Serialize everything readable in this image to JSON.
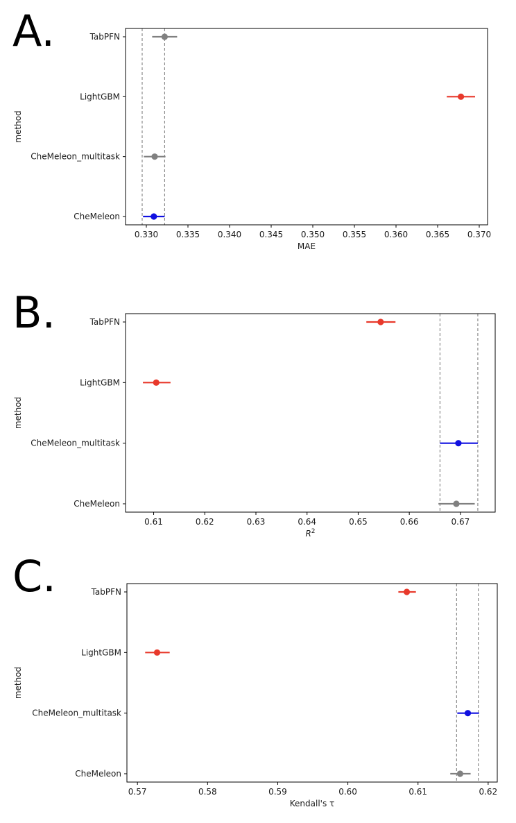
{
  "chart_data": [
    {
      "panel": "A.",
      "type": "scatter",
      "title": "",
      "xlabel": "MAE",
      "ylabel": "method",
      "categories": [
        "TabPFN",
        "LightGBM",
        "CheMeleon_multitask",
        "CheMeleon"
      ],
      "xlim": [
        0.3275,
        0.371
      ],
      "xticks": [
        0.33,
        0.335,
        0.34,
        0.345,
        0.35,
        0.355,
        0.36,
        0.365,
        0.37
      ],
      "xtick_labels": [
        "0.330",
        "0.335",
        "0.340",
        "0.345",
        "0.350",
        "0.355",
        "0.360",
        "0.365",
        "0.370"
      ],
      "reference_lines": [
        0.3295,
        0.3322
      ],
      "points": [
        {
          "method": "TabPFN",
          "value": 0.3322,
          "low": 0.3307,
          "high": 0.3337,
          "color": "#808080"
        },
        {
          "method": "LightGBM",
          "value": 0.3678,
          "low": 0.3661,
          "high": 0.3695,
          "color": "#e8392b"
        },
        {
          "method": "CheMeleon_multitask",
          "value": 0.331,
          "low": 0.3297,
          "high": 0.3323,
          "color": "#808080"
        },
        {
          "method": "CheMeleon",
          "value": 0.3309,
          "low": 0.3296,
          "high": 0.3322,
          "color": "#1010e0"
        }
      ]
    },
    {
      "panel": "B.",
      "type": "scatter",
      "title": "",
      "xlabel": "R²",
      "ylabel": "method",
      "categories": [
        "TabPFN",
        "LightGBM",
        "CheMeleon_multitask",
        "CheMeleon"
      ],
      "xlim": [
        0.6045,
        0.6768
      ],
      "xticks": [
        0.61,
        0.62,
        0.63,
        0.64,
        0.65,
        0.66,
        0.67
      ],
      "xtick_labels": [
        "0.61",
        "0.62",
        "0.63",
        "0.64",
        "0.65",
        "0.66",
        "0.67"
      ],
      "reference_lines": [
        0.666,
        0.6734
      ],
      "points": [
        {
          "method": "TabPFN",
          "value": 0.6544,
          "low": 0.6516,
          "high": 0.6573,
          "color": "#e8392b"
        },
        {
          "method": "LightGBM",
          "value": 0.6105,
          "low": 0.6079,
          "high": 0.6133,
          "color": "#e8392b"
        },
        {
          "method": "CheMeleon_multitask",
          "value": 0.6696,
          "low": 0.666,
          "high": 0.6734,
          "color": "#1010e0"
        },
        {
          "method": "CheMeleon",
          "value": 0.6692,
          "low": 0.6657,
          "high": 0.6728,
          "color": "#808080"
        }
      ]
    },
    {
      "panel": "C.",
      "type": "scatter",
      "title": "",
      "xlabel": "Kendall's τ",
      "ylabel": "method",
      "categories": [
        "TabPFN",
        "LightGBM",
        "CheMeleon_multitask",
        "CheMeleon"
      ],
      "xlim": [
        0.5685,
        0.6213
      ],
      "xticks": [
        0.57,
        0.58,
        0.59,
        0.6,
        0.61,
        0.62
      ],
      "xtick_labels": [
        "0.57",
        "0.58",
        "0.59",
        "0.60",
        "0.61",
        "0.62"
      ],
      "reference_lines": [
        0.6155,
        0.6186
      ],
      "points": [
        {
          "method": "TabPFN",
          "value": 0.6084,
          "low": 0.6072,
          "high": 0.6097,
          "color": "#e8392b"
        },
        {
          "method": "LightGBM",
          "value": 0.5728,
          "low": 0.5711,
          "high": 0.5746,
          "color": "#e8392b"
        },
        {
          "method": "CheMeleon_multitask",
          "value": 0.6171,
          "low": 0.6156,
          "high": 0.6187,
          "color": "#1010e0"
        },
        {
          "method": "CheMeleon",
          "value": 0.616,
          "low": 0.6146,
          "high": 0.6175,
          "color": "#808080"
        }
      ]
    }
  ]
}
